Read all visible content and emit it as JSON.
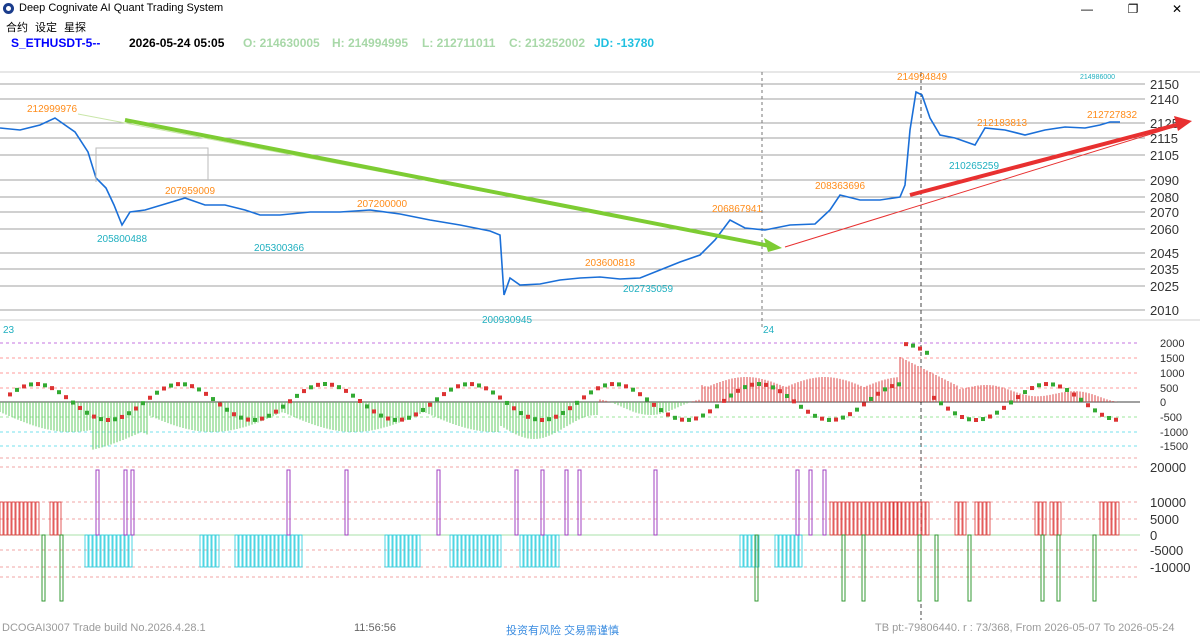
{
  "window": {
    "title": "Deep Cognivate AI Quant Trading System",
    "minimize_label": "—",
    "restore_label": "❐",
    "close_label": "✕"
  },
  "menu": [
    "合约",
    "设定",
    "星探"
  ],
  "quote": {
    "symbol": "S_ETHUSDT-5--",
    "datetime": "2026-05-24 05:05",
    "open": "O: 214630005",
    "high": "H: 214994995",
    "low": "L: 212711011",
    "close": "C: 213252002",
    "jd": "JD: -13780"
  },
  "colors": {
    "symbol": "#0000ff",
    "ohlc": "#a8d8a8",
    "jd": "#20c0e0",
    "price_line": "#1a6fd8",
    "annotation_high": "#ff8c1a",
    "annotation_low": "#20b0c0",
    "trend_down": "#7dcc33",
    "trend_up": "#e83030"
  },
  "price_axis": [
    "2150",
    "2140",
    "2125",
    "2115",
    "2105",
    "2090",
    "2080",
    "2070",
    "2060",
    "2045",
    "2035",
    "2025",
    "2010"
  ],
  "annotations": [
    {
      "text": "212999976",
      "kind": "high"
    },
    {
      "text": "207959009",
      "kind": "high"
    },
    {
      "text": "207200000",
      "kind": "high"
    },
    {
      "text": "203600818",
      "kind": "high"
    },
    {
      "text": "206867941",
      "kind": "high"
    },
    {
      "text": "208363696",
      "kind": "high"
    },
    {
      "text": "214994849",
      "kind": "high"
    },
    {
      "text": "212183813",
      "kind": "high"
    },
    {
      "text": "212727832",
      "kind": "high"
    },
    {
      "text": "205800488",
      "kind": "low"
    },
    {
      "text": "205300366",
      "kind": "low"
    },
    {
      "text": "200930945",
      "kind": "low"
    },
    {
      "text": "202735059",
      "kind": "low"
    },
    {
      "text": "210265259",
      "kind": "low"
    },
    {
      "text": "214986000",
      "kind": "low"
    }
  ],
  "day_labels": [
    "23",
    "24"
  ],
  "osc_axis": [
    "2000",
    "1500",
    "1000",
    "500",
    "0",
    "-500",
    "-1000",
    "-1500"
  ],
  "vol_axis": [
    "20000",
    "10000",
    "5000",
    "0",
    "-5000",
    "-10000"
  ],
  "footer": {
    "build": "DCOGAI3007 Trade build No.2026.4.28.1",
    "clock": "11:56:56",
    "risk": "投资有风险  交易需谨慎",
    "status": "TB pt:-79806440. r : 73/368, From 2026-05-07  To 2026-05-24"
  }
}
